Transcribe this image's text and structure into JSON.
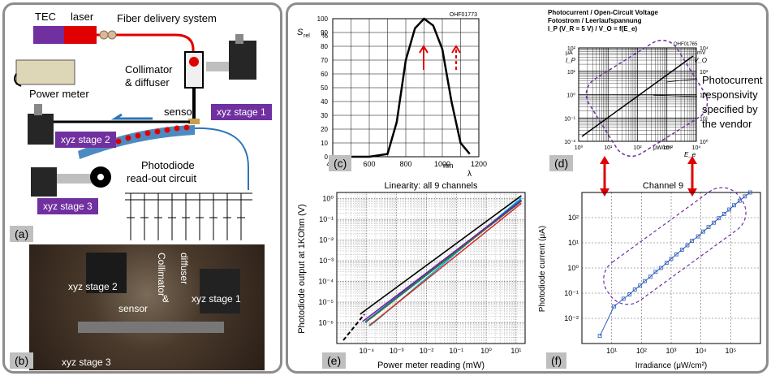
{
  "left_panel": {
    "tec": "TEC",
    "laser": "laser",
    "fiber": "Fiber delivery system",
    "collimator_l1": "Collimator",
    "collimator_l2": "& diffuser",
    "power_meter": "Power meter",
    "sensor": "sensor",
    "photodiode_l1": "Photodiode",
    "photodiode_l2": "read-out circuit",
    "stage1": "xyz stage 1",
    "stage2": "xyz stage 2",
    "stage3": "xyz stage 3",
    "tag_a": "(a)",
    "tag_b": "(b)",
    "photo": {
      "stage2": "xyz stage 2",
      "stage1": "xyz stage 1",
      "stage3": "xyz stage 3",
      "sensor": "sensor",
      "collimator": "Collimator",
      "amp": "&",
      "diffuser": "diffuser"
    }
  },
  "panel_c": {
    "tag": "(c)",
    "code": "OHF01773",
    "ylabel_main": "S",
    "ylabel_sub": "rel",
    "y_unit": "%",
    "xunit": "nm",
    "xsym": "λ",
    "yticks": [
      "100",
      "90",
      "80",
      "70",
      "60",
      "50",
      "40",
      "30",
      "20",
      "10",
      "0"
    ],
    "xticks": [
      "400",
      "600",
      "800",
      "1000",
      "1200"
    ]
  },
  "panel_d": {
    "tag": "(d)",
    "title1": "Photocurrent / Open-Circuit Voltage",
    "title2": "Fotostrom / Leerlaufspannung",
    "title3": "I_P (V_R = 5 V) / V_O = f(E_e)",
    "code": "OHF01765",
    "annot1": "Photocurrent",
    "annot2": "responsivity",
    "annot3": "specified by",
    "annot4": "the vendor",
    "left_ticks": [
      "10²",
      "10¹",
      "10⁰",
      "10⁻¹",
      "10⁻²"
    ],
    "right_ticks": [
      "10⁴",
      "10³",
      "10²",
      "10¹",
      "10⁰"
    ],
    "x_ticks": [
      "10⁰",
      "10¹",
      "10²",
      "10³",
      "10⁴"
    ],
    "ip": "I_P",
    "vo": "V_O",
    "ua": "μA",
    "mv": "mV",
    "xunit": "μW/cm²",
    "ee": "E_e"
  },
  "panel_e": {
    "tag": "(e)",
    "title": "Linearity: all 9 channels",
    "xlabel": "Power meter reading (mW)",
    "ylabel": "Photodiode output at 1KOhm (V)",
    "x_ticks": [
      "10⁻⁴",
      "10⁻³",
      "10⁻²",
      "10⁻¹",
      "10⁰",
      "10¹"
    ],
    "y_ticks": [
      "10⁰",
      "10⁻¹",
      "10⁻²",
      "10⁻³",
      "10⁻⁴",
      "10⁻⁵",
      "10⁻⁶"
    ]
  },
  "panel_f": {
    "tag": "(f)",
    "title": "Channel 9",
    "xlabel": "Irradiance (μW/cm²)",
    "ylabel": "Photodiode current (μA)",
    "x_ticks": [
      "10¹",
      "10²",
      "10³",
      "10⁴",
      "10⁵"
    ],
    "y_ticks": [
      "10²",
      "10¹",
      "10⁰",
      "10⁻¹",
      "10⁻²"
    ]
  },
  "chart_data": [
    {
      "type": "line",
      "title": "",
      "xlabel": "λ",
      "ylabel": "S rel %",
      "x": [
        400,
        600,
        700,
        750,
        800,
        850,
        900,
        950,
        1000,
        1050,
        1100,
        1150
      ],
      "values": [
        0,
        0,
        2,
        25,
        70,
        93,
        100,
        95,
        78,
        40,
        10,
        2
      ],
      "xlim": [
        400,
        1200
      ],
      "ylim": [
        0,
        100
      ],
      "grid": true
    },
    {
      "type": "line",
      "title": "Photocurrent / Open-Circuit Voltage",
      "xlabel": "E_e",
      "ylabel": "I_P",
      "x": [
        1,
        10000
      ],
      "values": [
        0.01,
        100
      ],
      "xscale": "log",
      "yscale": "log",
      "grid": true
    },
    {
      "type": "line",
      "title": "Linearity: all 9 channels",
      "xlabel": "Power meter reading (mW)",
      "ylabel": "Photodiode output at 1KOhm (V)",
      "xscale": "log",
      "yscale": "log",
      "xlim": [
        1e-05,
        20
      ],
      "ylim": [
        1e-07,
        2
      ],
      "grid": true,
      "series": [
        {
          "color": "#000000",
          "x": [
            0.0001,
            15
          ],
          "values": [
            4.5e-06,
            1.4
          ]
        },
        {
          "color": "#00bcd4",
          "x": [
            0.0002,
            15
          ],
          "values": [
            1.2e-06,
            1.1
          ]
        },
        {
          "color": "#1565c0",
          "x": [
            0.00015,
            15
          ],
          "values": [
            2e-06,
            0.9
          ]
        },
        {
          "color": "#2e7d32",
          "x": [
            0.00015,
            15
          ],
          "values": [
            1.8e-06,
            0.75
          ]
        },
        {
          "color": "#d32f2f",
          "x": [
            0.0002,
            15
          ],
          "values": [
            1.3e-06,
            0.6
          ]
        },
        {
          "color": "#7b1fa2",
          "x": [
            0.00012,
            15
          ],
          "values": [
            2e-06,
            0.8
          ]
        }
      ]
    },
    {
      "type": "scatter",
      "title": "Channel 9",
      "xlabel": "Irradiance (μW/cm²)",
      "ylabel": "Photodiode current (μA)",
      "xscale": "log",
      "yscale": "log",
      "xlim": [
        1,
        1000000
      ],
      "ylim": [
        0.001,
        1000
      ],
      "grid": true,
      "x": [
        4,
        12,
        25,
        40,
        60,
        90,
        130,
        200,
        300,
        450,
        700,
        1000,
        1500,
        2300,
        3500,
        5000,
        8000,
        12000,
        18000,
        27000,
        40000,
        60000,
        90000,
        130000,
        200000,
        300000,
        450000
      ],
      "values": [
        0.002,
        0.03,
        0.06,
        0.09,
        0.14,
        0.2,
        0.3,
        0.45,
        0.7,
        1.0,
        1.6,
        2.3,
        3.5,
        5.3,
        8,
        12,
        18,
        28,
        42,
        63,
        95,
        140,
        210,
        310,
        470,
        700,
        1000
      ]
    }
  ]
}
